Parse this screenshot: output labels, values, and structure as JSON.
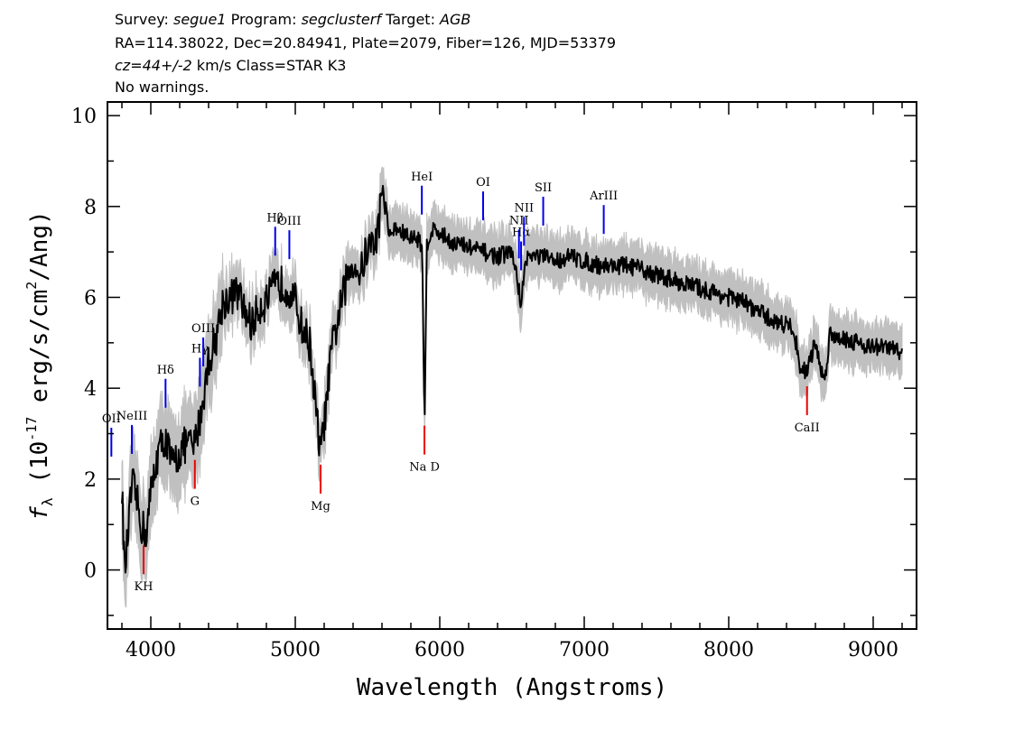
{
  "header": {
    "survey_label": "Survey:",
    "survey": "segue1",
    "program_label": "Program:",
    "program": "segclusterf",
    "target_label": "Target:",
    "target": "AGB",
    "line2": "RA=114.38022, Dec=20.84941, Plate=2079, Fiber=126, MJD=53379",
    "cz": "cz=44+/-2",
    "cz_rest": " km/s Class=STAR K3",
    "line4": "No warnings."
  },
  "chart_data": {
    "type": "line",
    "title": "",
    "xlabel": "Wavelength (Angstroms)",
    "ylabel": "f_λ (10^-17 erg/s/cm^2/Ang)",
    "xlim": [
      3700,
      9300
    ],
    "ylim": [
      -1.3,
      10.3
    ],
    "x_ticks": [
      4000,
      5000,
      6000,
      7000,
      8000,
      9000
    ],
    "y_ticks": [
      0,
      2,
      4,
      6,
      8,
      10
    ],
    "series": [
      {
        "color": "#000000",
        "error_color": "#c0c0c0",
        "x": [
          3800,
          3820,
          3840,
          3870,
          3900,
          3930,
          3950,
          3970,
          4000,
          4050,
          4100,
          4150,
          4200,
          4250,
          4300,
          4350,
          4400,
          4450,
          4500,
          4550,
          4600,
          4650,
          4700,
          4750,
          4800,
          4850,
          4900,
          4950,
          5000,
          5050,
          5100,
          5150,
          5170,
          5190,
          5250,
          5300,
          5350,
          5400,
          5450,
          5500,
          5550,
          5580,
          5600,
          5650,
          5700,
          5750,
          5800,
          5850,
          5880,
          5890,
          5896,
          5910,
          5950,
          6000,
          6100,
          6200,
          6300,
          6400,
          6500,
          6563,
          6600,
          6700,
          6800,
          6900,
          7000,
          7100,
          7200,
          7300,
          7400,
          7500,
          7600,
          7700,
          7800,
          7900,
          8000,
          8100,
          8200,
          8300,
          8400,
          8450,
          8498,
          8542,
          8600,
          8662,
          8700,
          8800,
          8900,
          9000,
          9100,
          9200
        ],
        "y": [
          1.8,
          -0.1,
          0.7,
          1.9,
          1.6,
          1.0,
          0.9,
          0.8,
          1.7,
          2.6,
          2.9,
          2.3,
          2.6,
          2.8,
          2.7,
          3.5,
          4.6,
          5.1,
          5.9,
          6.0,
          6.1,
          5.7,
          5.4,
          5.8,
          5.9,
          6.2,
          6.3,
          6.2,
          5.9,
          5.3,
          5.0,
          3.3,
          2.6,
          2.9,
          4.8,
          5.6,
          6.3,
          6.8,
          6.5,
          7.1,
          7.2,
          7.6,
          8.5,
          7.4,
          7.5,
          7.4,
          7.3,
          7.3,
          7.1,
          3.8,
          3.4,
          7.2,
          7.5,
          7.4,
          7.2,
          7.1,
          7.0,
          6.9,
          7.0,
          5.9,
          6.9,
          6.9,
          6.8,
          6.9,
          6.8,
          6.7,
          6.7,
          6.7,
          6.6,
          6.5,
          6.4,
          6.3,
          6.2,
          6.1,
          6.0,
          5.9,
          5.7,
          5.5,
          5.4,
          5.3,
          4.4,
          4.4,
          5.0,
          4.1,
          5.2,
          5.1,
          5.0,
          4.9,
          4.9,
          4.8
        ]
      }
    ],
    "line_labels": [
      {
        "label": "OII",
        "wavelength": 3727,
        "color": "blue"
      },
      {
        "label": "NeIII",
        "wavelength": 3869,
        "color": "blue"
      },
      {
        "label": "Hδ",
        "wavelength": 4102,
        "color": "blue"
      },
      {
        "label": "Hγ",
        "wavelength": 4340,
        "color": "blue"
      },
      {
        "label": "OIII",
        "wavelength": 4363,
        "color": "blue"
      },
      {
        "label": "Hβ",
        "wavelength": 4861,
        "color": "blue"
      },
      {
        "label": "OIII",
        "wavelength": 4959,
        "color": "blue"
      },
      {
        "label": "HeI",
        "wavelength": 5876,
        "color": "blue"
      },
      {
        "label": "OI",
        "wavelength": 6300,
        "color": "blue"
      },
      {
        "label": "NII",
        "wavelength": 6548,
        "color": "blue"
      },
      {
        "label": "Hα",
        "wavelength": 6563,
        "color": "blue"
      },
      {
        "label": "NII",
        "wavelength": 6583,
        "color": "blue"
      },
      {
        "label": "SII",
        "wavelength": 6716,
        "color": "blue"
      },
      {
        "label": "ArIII",
        "wavelength": 7135,
        "color": "blue"
      },
      {
        "label": "KH",
        "wavelength": 3950,
        "color": "red"
      },
      {
        "label": "G",
        "wavelength": 4305,
        "color": "red"
      },
      {
        "label": "Mg",
        "wavelength": 5175,
        "color": "red"
      },
      {
        "label": "Na D",
        "wavelength": 5894,
        "color": "red"
      },
      {
        "label": "CaII",
        "wavelength": 8542,
        "color": "red"
      }
    ]
  }
}
